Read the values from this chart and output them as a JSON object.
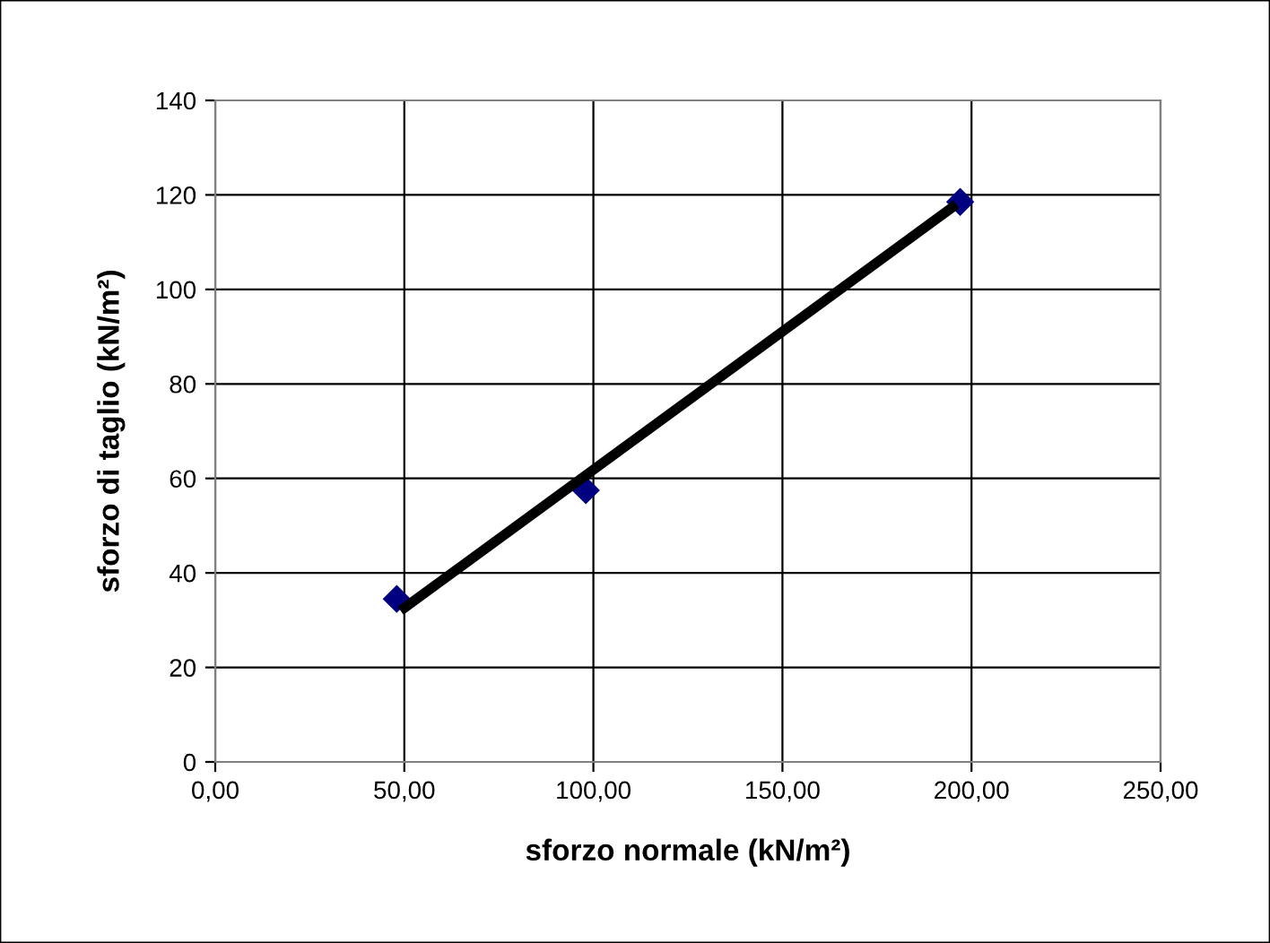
{
  "chart_data": {
    "type": "scatter",
    "xlabel": "sforzo normale (kN/m²)",
    "ylabel": "sforzo di taglio (kN/m²)",
    "xlim": [
      0,
      250
    ],
    "xticks": [
      {
        "value": 0,
        "label": "0,00"
      },
      {
        "value": 50,
        "label": "50,00"
      },
      {
        "value": 100,
        "label": "100,00"
      },
      {
        "value": 150,
        "label": "150,00"
      },
      {
        "value": 200,
        "label": "200,00"
      },
      {
        "value": 250,
        "label": "250,00"
      }
    ],
    "ylim": [
      0,
      140
    ],
    "yticks": [
      0,
      20,
      40,
      60,
      80,
      100,
      120,
      140
    ],
    "grid": true,
    "marker": "diamond",
    "series": [
      {
        "color": "#000080",
        "x": [
          48,
          98,
          197
        ],
        "values": [
          34.5,
          57.5,
          118.5
        ]
      },
      {
        "type": "line",
        "color": "#000000",
        "x": [
          49,
          196
        ],
        "values": [
          32,
          118
        ],
        "marker": "none"
      }
    ]
  }
}
